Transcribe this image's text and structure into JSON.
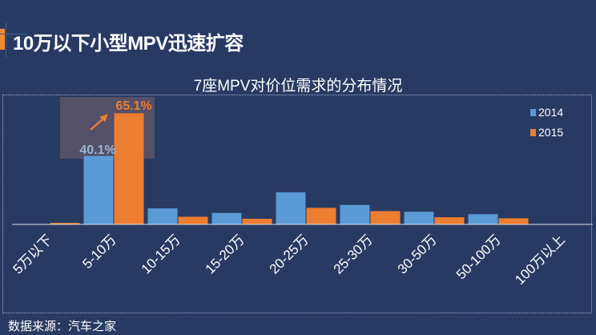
{
  "page": {
    "title": "10万以下小型MPV迅速扩容",
    "source": "数据来源：汽车之家"
  },
  "colors": {
    "background": "#273a62",
    "series_2014": "#5b9bd5",
    "series_2015": "#ed7d31",
    "highlight": "#5c5568"
  },
  "chart_data": {
    "type": "bar",
    "title": "7座MPV对价位需求的分布情况",
    "categories": [
      "5万以下",
      "5-10万",
      "10-15万",
      "15-20万",
      "20-25万",
      "25-30万",
      "30-50万",
      "50-100万",
      "100万以上"
    ],
    "series": [
      {
        "name": "2014",
        "values": [
          0,
          40.1,
          9.4,
          6.7,
          18.8,
          11.4,
          7.4,
          6.0,
          0
        ]
      },
      {
        "name": "2015",
        "values": [
          0.9,
          65.1,
          4.5,
          3.3,
          9.7,
          7.8,
          4.2,
          3.6,
          0.2
        ]
      }
    ],
    "annotations": [
      "40.1%",
      "65.1%"
    ],
    "legend": "top-right",
    "grid": false,
    "ylim": [
      0,
      70
    ],
    "xlabel": "",
    "ylabel": ""
  }
}
